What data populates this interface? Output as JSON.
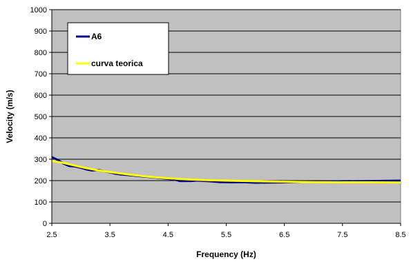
{
  "chart_data": {
    "type": "line",
    "title": "",
    "xlabel": "Frequency (Hz)",
    "ylabel": "Velocity (m/s)",
    "xlim": [
      2.5,
      8.5
    ],
    "ylim": [
      0,
      1000
    ],
    "x_ticks": [
      "2.5",
      "3.5",
      "4.5",
      "5.5",
      "6.5",
      "7.5",
      "8.5"
    ],
    "y_ticks": [
      "0",
      "100",
      "200",
      "300",
      "400",
      "500",
      "600",
      "700",
      "800",
      "900",
      "1000"
    ],
    "grid": "horizontal",
    "legend_position": "top-left",
    "plot_background": "#c0c0c0",
    "series": [
      {
        "name": "A6",
        "color": "#00008b",
        "points": [
          [
            2.5,
            310
          ],
          [
            2.6,
            297
          ],
          [
            2.7,
            280
          ],
          [
            2.8,
            268
          ],
          [
            2.9,
            266
          ],
          [
            3.0,
            260
          ],
          [
            3.1,
            252
          ],
          [
            3.2,
            247
          ],
          [
            3.3,
            250
          ],
          [
            3.4,
            244
          ],
          [
            3.5,
            238
          ],
          [
            3.6,
            232
          ],
          [
            3.7,
            228
          ],
          [
            3.8,
            226
          ],
          [
            3.9,
            224
          ],
          [
            4.0,
            221
          ],
          [
            4.2,
            216
          ],
          [
            4.4,
            211
          ],
          [
            4.6,
            205
          ],
          [
            4.7,
            198
          ],
          [
            4.9,
            198
          ],
          [
            5.0,
            200
          ],
          [
            5.2,
            197
          ],
          [
            5.4,
            193
          ],
          [
            5.6,
            192
          ],
          [
            5.8,
            193
          ],
          [
            6.0,
            190
          ],
          [
            6.5,
            192
          ],
          [
            7.0,
            195
          ],
          [
            7.5,
            197
          ],
          [
            8.0,
            198
          ],
          [
            8.5,
            200
          ]
        ]
      },
      {
        "name": "curva teorica",
        "color": "#ffff00",
        "points": [
          [
            2.5,
            292
          ],
          [
            2.7,
            283
          ],
          [
            2.9,
            270
          ],
          [
            3.1,
            258
          ],
          [
            3.3,
            248
          ],
          [
            3.5,
            240
          ],
          [
            3.7,
            233
          ],
          [
            3.9,
            226
          ],
          [
            4.1,
            220
          ],
          [
            4.3,
            215
          ],
          [
            4.5,
            211
          ],
          [
            4.8,
            206
          ],
          [
            5.1,
            203
          ],
          [
            5.5,
            200
          ],
          [
            6.0,
            197
          ],
          [
            6.5,
            195
          ],
          [
            7.0,
            193
          ],
          [
            7.5,
            192
          ],
          [
            8.0,
            192
          ],
          [
            8.5,
            191
          ]
        ]
      }
    ]
  }
}
